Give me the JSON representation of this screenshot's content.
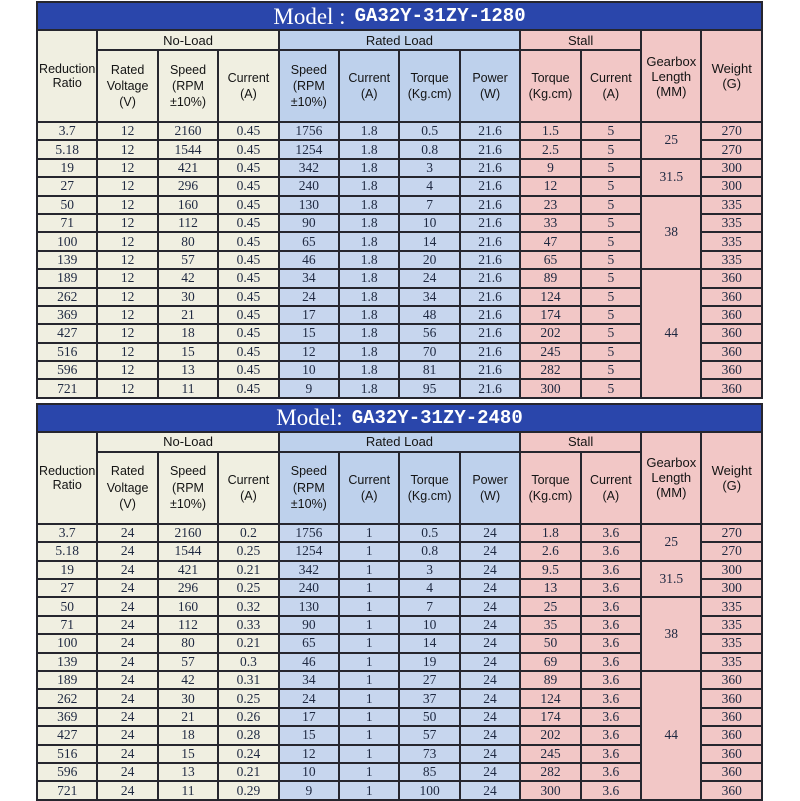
{
  "colors": {
    "title_bar_blue": "#2a46ab",
    "no_load_cream": "#f0efe1",
    "rated_load_header_blue": "#bed1ec",
    "rated_load_cell_blue": "#c7d6ee",
    "stall_pink": "#f2c7c6",
    "border": "#26262e",
    "title_text": "#ffffff",
    "data_text": "#1e2840"
  },
  "groups": {
    "no_load": "No-Load",
    "rated_load": "Rated Load",
    "stall": "Stall"
  },
  "columns": {
    "reduction_ratio": "Reduction Ratio",
    "rated_voltage": "Rated Voltage (V)",
    "noload_speed": "Speed (RPM ±10%)",
    "noload_current": "Current (A)",
    "rated_speed": "Speed (RPM ±10%)",
    "rated_current": "Current (A)",
    "rated_torque": "Torque (Kg.cm)",
    "rated_power": "Power (W)",
    "stall_torque": "Torque (Kg.cm)",
    "stall_current": "Current (A)",
    "gearbox_length": "Gearbox Length (MM)",
    "weight": "Weight (G)"
  },
  "tables": [
    {
      "model_label": "Model :",
      "model_value": "GA32Y-31ZY-1280",
      "rows": [
        [
          "3.7",
          "12",
          "2160",
          "0.45",
          "1756",
          "1.8",
          "0.5",
          "21.6",
          "1.5",
          "5",
          "270"
        ],
        [
          "5.18",
          "12",
          "1544",
          "0.45",
          "1254",
          "1.8",
          "0.8",
          "21.6",
          "2.5",
          "5",
          "270"
        ],
        [
          "19",
          "12",
          "421",
          "0.45",
          "342",
          "1.8",
          "3",
          "21.6",
          "9",
          "5",
          "300"
        ],
        [
          "27",
          "12",
          "296",
          "0.45",
          "240",
          "1.8",
          "4",
          "21.6",
          "12",
          "5",
          "300"
        ],
        [
          "50",
          "12",
          "160",
          "0.45",
          "130",
          "1.8",
          "7",
          "21.6",
          "23",
          "5",
          "335"
        ],
        [
          "71",
          "12",
          "112",
          "0.45",
          "90",
          "1.8",
          "10",
          "21.6",
          "33",
          "5",
          "335"
        ],
        [
          "100",
          "12",
          "80",
          "0.45",
          "65",
          "1.8",
          "14",
          "21.6",
          "47",
          "5",
          "335"
        ],
        [
          "139",
          "12",
          "57",
          "0.45",
          "46",
          "1.8",
          "20",
          "21.6",
          "65",
          "5",
          "335"
        ],
        [
          "189",
          "12",
          "42",
          "0.45",
          "34",
          "1.8",
          "24",
          "21.6",
          "89",
          "5",
          "360"
        ],
        [
          "262",
          "12",
          "30",
          "0.45",
          "24",
          "1.8",
          "34",
          "21.6",
          "124",
          "5",
          "360"
        ],
        [
          "369",
          "12",
          "21",
          "0.45",
          "17",
          "1.8",
          "48",
          "21.6",
          "174",
          "5",
          "360"
        ],
        [
          "427",
          "12",
          "18",
          "0.45",
          "15",
          "1.8",
          "56",
          "21.6",
          "202",
          "5",
          "360"
        ],
        [
          "516",
          "12",
          "15",
          "0.45",
          "12",
          "1.8",
          "70",
          "21.6",
          "245",
          "5",
          "360"
        ],
        [
          "596",
          "12",
          "13",
          "0.45",
          "10",
          "1.8",
          "81",
          "21.6",
          "282",
          "5",
          "360"
        ],
        [
          "721",
          "12",
          "11",
          "0.45",
          "9",
          "1.8",
          "95",
          "21.6",
          "300",
          "5",
          "360"
        ]
      ],
      "gearbox_groups": [
        {
          "value": "25",
          "span": 2
        },
        {
          "value": "31.5",
          "span": 2
        },
        {
          "value": "38",
          "span": 4
        },
        {
          "value": "44",
          "span": 7
        }
      ]
    },
    {
      "model_label": "Model:",
      "model_value": "GA32Y-31ZY-2480",
      "rows": [
        [
          "3.7",
          "24",
          "2160",
          "0.2",
          "1756",
          "1",
          "0.5",
          "24",
          "1.8",
          "3.6",
          "270"
        ],
        [
          "5.18",
          "24",
          "1544",
          "0.25",
          "1254",
          "1",
          "0.8",
          "24",
          "2.6",
          "3.6",
          "270"
        ],
        [
          "19",
          "24",
          "421",
          "0.21",
          "342",
          "1",
          "3",
          "24",
          "9.5",
          "3.6",
          "300"
        ],
        [
          "27",
          "24",
          "296",
          "0.25",
          "240",
          "1",
          "4",
          "24",
          "13",
          "3.6",
          "300"
        ],
        [
          "50",
          "24",
          "160",
          "0.32",
          "130",
          "1",
          "7",
          "24",
          "25",
          "3.6",
          "335"
        ],
        [
          "71",
          "24",
          "112",
          "0.33",
          "90",
          "1",
          "10",
          "24",
          "35",
          "3.6",
          "335"
        ],
        [
          "100",
          "24",
          "80",
          "0.21",
          "65",
          "1",
          "14",
          "24",
          "50",
          "3.6",
          "335"
        ],
        [
          "139",
          "24",
          "57",
          "0.3",
          "46",
          "1",
          "19",
          "24",
          "69",
          "3.6",
          "335"
        ],
        [
          "189",
          "24",
          "42",
          "0.31",
          "34",
          "1",
          "27",
          "24",
          "89",
          "3.6",
          "360"
        ],
        [
          "262",
          "24",
          "30",
          "0.25",
          "24",
          "1",
          "37",
          "24",
          "124",
          "3.6",
          "360"
        ],
        [
          "369",
          "24",
          "21",
          "0.26",
          "17",
          "1",
          "50",
          "24",
          "174",
          "3.6",
          "360"
        ],
        [
          "427",
          "24",
          "18",
          "0.28",
          "15",
          "1",
          "57",
          "24",
          "202",
          "3.6",
          "360"
        ],
        [
          "516",
          "24",
          "15",
          "0.24",
          "12",
          "1",
          "73",
          "24",
          "245",
          "3.6",
          "360"
        ],
        [
          "596",
          "24",
          "13",
          "0.21",
          "10",
          "1",
          "85",
          "24",
          "282",
          "3.6",
          "360"
        ],
        [
          "721",
          "24",
          "11",
          "0.29",
          "9",
          "1",
          "100",
          "24",
          "300",
          "3.6",
          "360"
        ]
      ],
      "gearbox_groups": [
        {
          "value": "25",
          "span": 2
        },
        {
          "value": "31.5",
          "span": 2
        },
        {
          "value": "38",
          "span": 4
        },
        {
          "value": "44",
          "span": 7
        }
      ]
    }
  ]
}
